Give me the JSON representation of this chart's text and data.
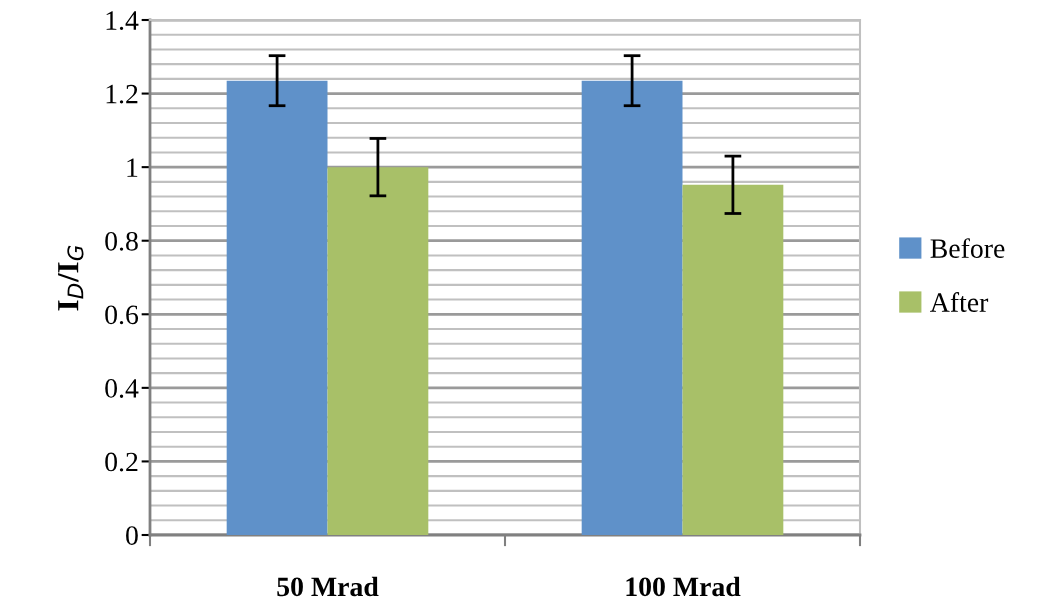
{
  "chart_data": {
    "type": "bar",
    "ylabel": "I$_{D}$/I$_{G}$",
    "categories": [
      "50 Mrad",
      "100 Mrad"
    ],
    "series": [
      {
        "name": "Before",
        "color": "#5f91c9",
        "values": [
          1.235,
          1.235
        ],
        "errors": [
          0.068,
          0.068
        ]
      },
      {
        "name": "After",
        "color": "#a8c068",
        "values": [
          1.0,
          0.952
        ],
        "errors": [
          0.078,
          0.078
        ]
      }
    ],
    "ylim": [
      0,
      1.4
    ],
    "yticks": [
      0,
      {
        "value": 0.04,
        "label": null
      },
      {
        "value": 0.08,
        "label": null
      },
      {
        "value": 0.12,
        "label": null
      },
      {
        "value": 0.16,
        "label": null
      },
      0.2,
      {
        "value": 0.24,
        "label": null
      },
      {
        "value": 0.28,
        "label": null
      },
      {
        "value": 0.32,
        "label": null
      },
      {
        "value": 0.36,
        "label": null
      },
      0.4,
      {
        "value": 0.44,
        "label": null
      },
      {
        "value": 0.48,
        "label": null
      },
      {
        "value": 0.52,
        "label": null
      },
      {
        "value": 0.56,
        "label": null
      },
      0.6,
      {
        "value": 0.64,
        "label": null
      },
      {
        "value": 0.68,
        "label": null
      },
      {
        "value": 0.72,
        "label": null
      },
      {
        "value": 0.76,
        "label": null
      },
      0.8,
      {
        "value": 0.84,
        "label": null
      },
      {
        "value": 0.88,
        "label": null
      },
      {
        "value": 0.92,
        "label": null
      },
      {
        "value": 0.96,
        "label": null
      },
      1,
      {
        "value": 1.04,
        "label": null
      },
      {
        "value": 1.08,
        "label": null
      },
      {
        "value": 1.12,
        "label": null
      },
      {
        "value": 1.16,
        "label": null
      },
      1.2,
      {
        "value": 1.24,
        "label": null
      },
      {
        "value": 1.28,
        "label": null
      },
      {
        "value": 1.32,
        "label": null
      },
      {
        "value": 1.36,
        "label": null
      },
      1.4
    ],
    "grid": "y",
    "legend": "right"
  }
}
